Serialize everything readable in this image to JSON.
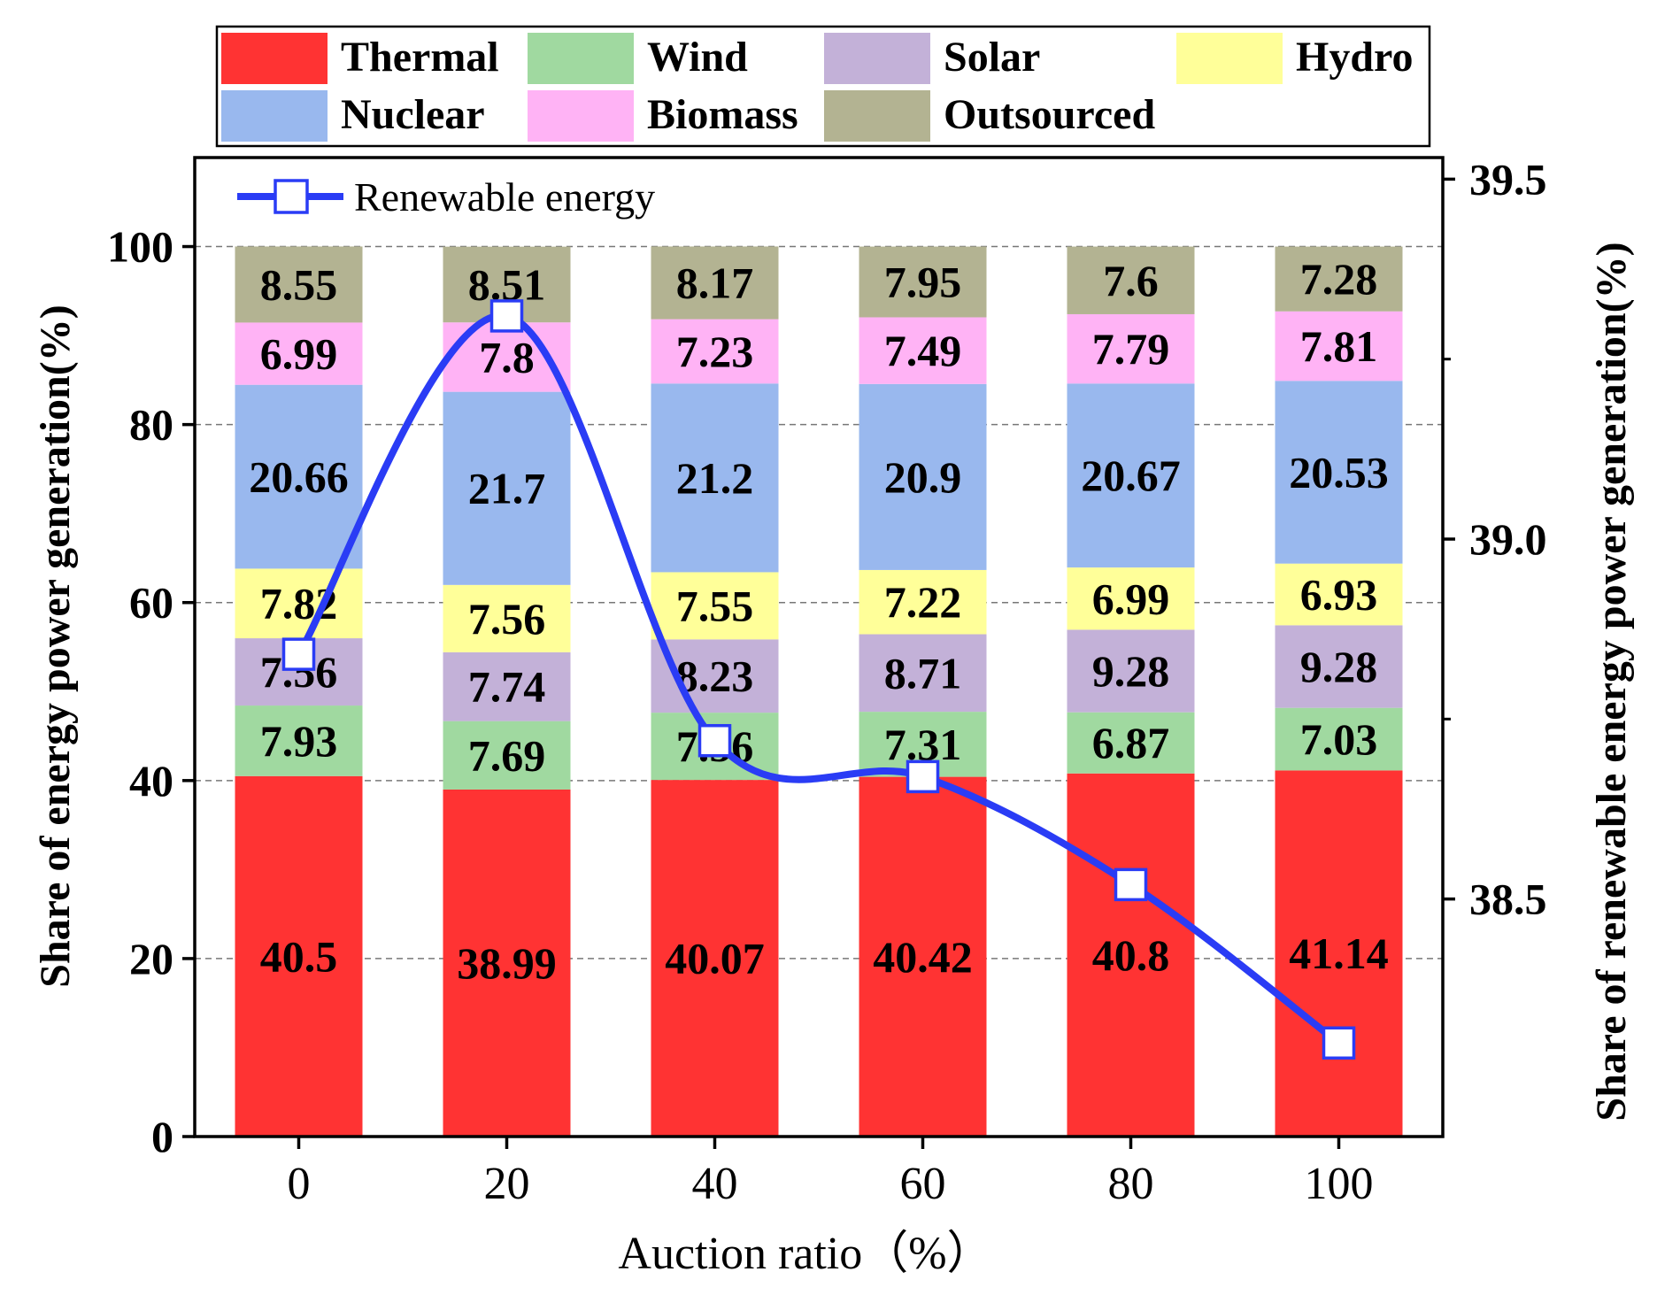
{
  "chart_data": {
    "type": "bar",
    "stacked": true,
    "categories": [
      "0",
      "20",
      "40",
      "60",
      "80",
      "100"
    ],
    "series": [
      {
        "name": "Thermal",
        "color": "#ff3333",
        "values": [
          40.5,
          38.99,
          40.07,
          40.42,
          40.8,
          41.14
        ]
      },
      {
        "name": "Wind",
        "color": "#a0d9a0",
        "values": [
          7.93,
          7.69,
          7.56,
          7.31,
          6.87,
          7.03
        ]
      },
      {
        "name": "Solar",
        "color": "#c3b1d8",
        "values": [
          7.56,
          7.74,
          8.23,
          8.71,
          9.28,
          9.28
        ]
      },
      {
        "name": "Hydro",
        "color": "#ffff99",
        "values": [
          7.82,
          7.56,
          7.55,
          7.22,
          6.99,
          6.93
        ]
      },
      {
        "name": "Nuclear",
        "color": "#99b8ee",
        "values": [
          20.66,
          21.7,
          21.2,
          20.9,
          20.67,
          20.53
        ]
      },
      {
        "name": "Biomass",
        "color": "#ffb3f5",
        "values": [
          6.99,
          7.8,
          7.23,
          7.49,
          7.79,
          7.81
        ]
      },
      {
        "name": "Outsourced",
        "color": "#b3b392",
        "values": [
          8.55,
          8.51,
          8.17,
          7.95,
          7.6,
          7.28
        ]
      }
    ],
    "line_series": {
      "name": "Renewable energy",
      "color": "#2a3cf5",
      "axis": "right",
      "values": [
        38.84,
        39.31,
        38.72,
        38.67,
        38.52,
        38.3
      ]
    },
    "legend_order": [
      "Thermal",
      "Wind",
      "Solar",
      "Hydro",
      "Nuclear",
      "Biomass",
      "Outsourced"
    ],
    "xlabel": "Auction ratio（%）",
    "ylabel": "Share of energy power generation(%)",
    "y2label": "Share of renewable energy power generation(%)",
    "ylim": [
      0,
      110
    ],
    "yticks": [
      0,
      20,
      40,
      60,
      80,
      100
    ],
    "y2lim": [
      38.17,
      39.53
    ],
    "y2ticks": [
      "38.5",
      "39.0",
      "39.5"
    ],
    "y2minor": [
      38.75,
      39.25
    ],
    "grid": "dashed horizontal at major ticks"
  }
}
